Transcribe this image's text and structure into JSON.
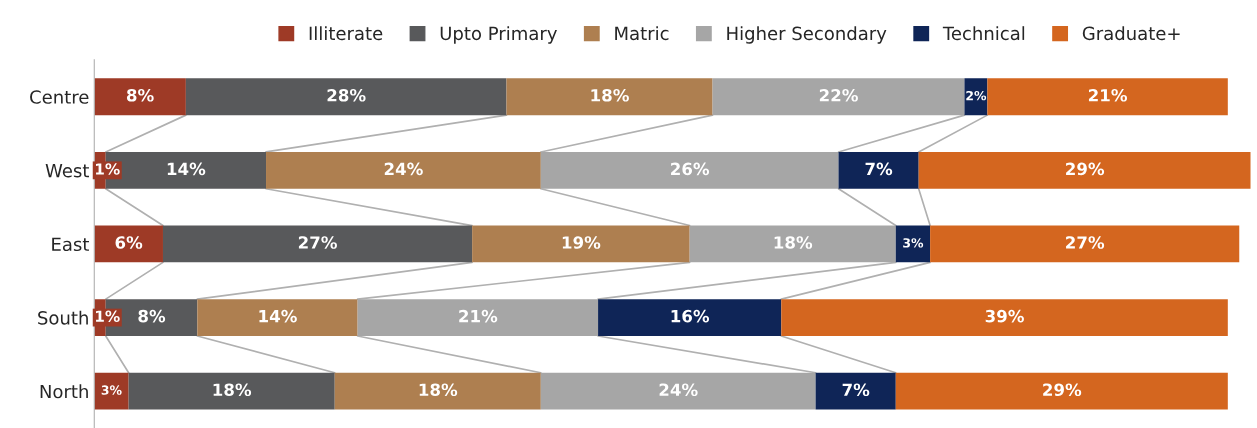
{
  "chart_data": {
    "type": "bar",
    "orientation": "horizontal",
    "stacked": true,
    "legend": "top",
    "grid": false,
    "categories": [
      "Centre",
      "West",
      "East",
      "South",
      "North"
    ],
    "series": [
      {
        "name": "Illiterate",
        "color": "#9e3a26",
        "values": [
          8,
          1,
          6,
          1,
          3
        ],
        "value_labels": [
          "8%",
          "1%",
          "6%",
          "1%",
          "3%"
        ]
      },
      {
        "name": "Upto Primary",
        "color": "#58595b",
        "values": [
          28,
          14,
          27,
          8,
          18
        ],
        "value_labels": [
          "28%",
          "14%",
          "27%",
          "8%",
          "18%"
        ]
      },
      {
        "name": "Matric",
        "color": "#ae7f50",
        "values": [
          18,
          24,
          19,
          14,
          18
        ],
        "value_labels": [
          "18%",
          "24%",
          "19%",
          "14%",
          "18%"
        ]
      },
      {
        "name": "Higher Secondary",
        "color": "#a6a6a6",
        "values": [
          22,
          26,
          18,
          21,
          24
        ],
        "value_labels": [
          "22%",
          "26%",
          "18%",
          "21%",
          "24%"
        ]
      },
      {
        "name": "Technical",
        "color": "#0f2557",
        "values": [
          2,
          7,
          3,
          16,
          7
        ],
        "value_labels": [
          "2%",
          "7%",
          "3%",
          "16%",
          "7%"
        ]
      },
      {
        "name": "Graduate+",
        "color": "#d4661f",
        "values": [
          21,
          29,
          27,
          39,
          29
        ],
        "value_labels": [
          "21%",
          "29%",
          "27%",
          "39%",
          "29%"
        ]
      }
    ]
  }
}
